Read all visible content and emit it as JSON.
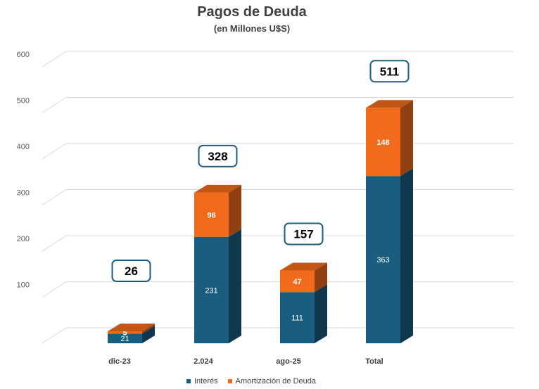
{
  "chart_data": {
    "type": "bar",
    "stacked": true,
    "title": "Pagos de Deuda",
    "subtitle": "(en Millones U$S)",
    "categories": [
      "dic-23",
      "2.024",
      "ago-25",
      "Total"
    ],
    "series": [
      {
        "name": "Interés",
        "color": "#1b5d7e",
        "values": [
          21,
          231,
          111,
          363
        ]
      },
      {
        "name": "Amortización de Deuda",
        "color": "#f26b1d",
        "values": [
          5,
          96,
          47,
          148
        ]
      }
    ],
    "totals": [
      26,
      328,
      157,
      511
    ],
    "ylim": [
      0,
      600
    ],
    "yticks": [
      "100",
      "200",
      "300",
      "400",
      "500",
      "600"
    ],
    "grid": true,
    "legend_position": "bottom"
  }
}
